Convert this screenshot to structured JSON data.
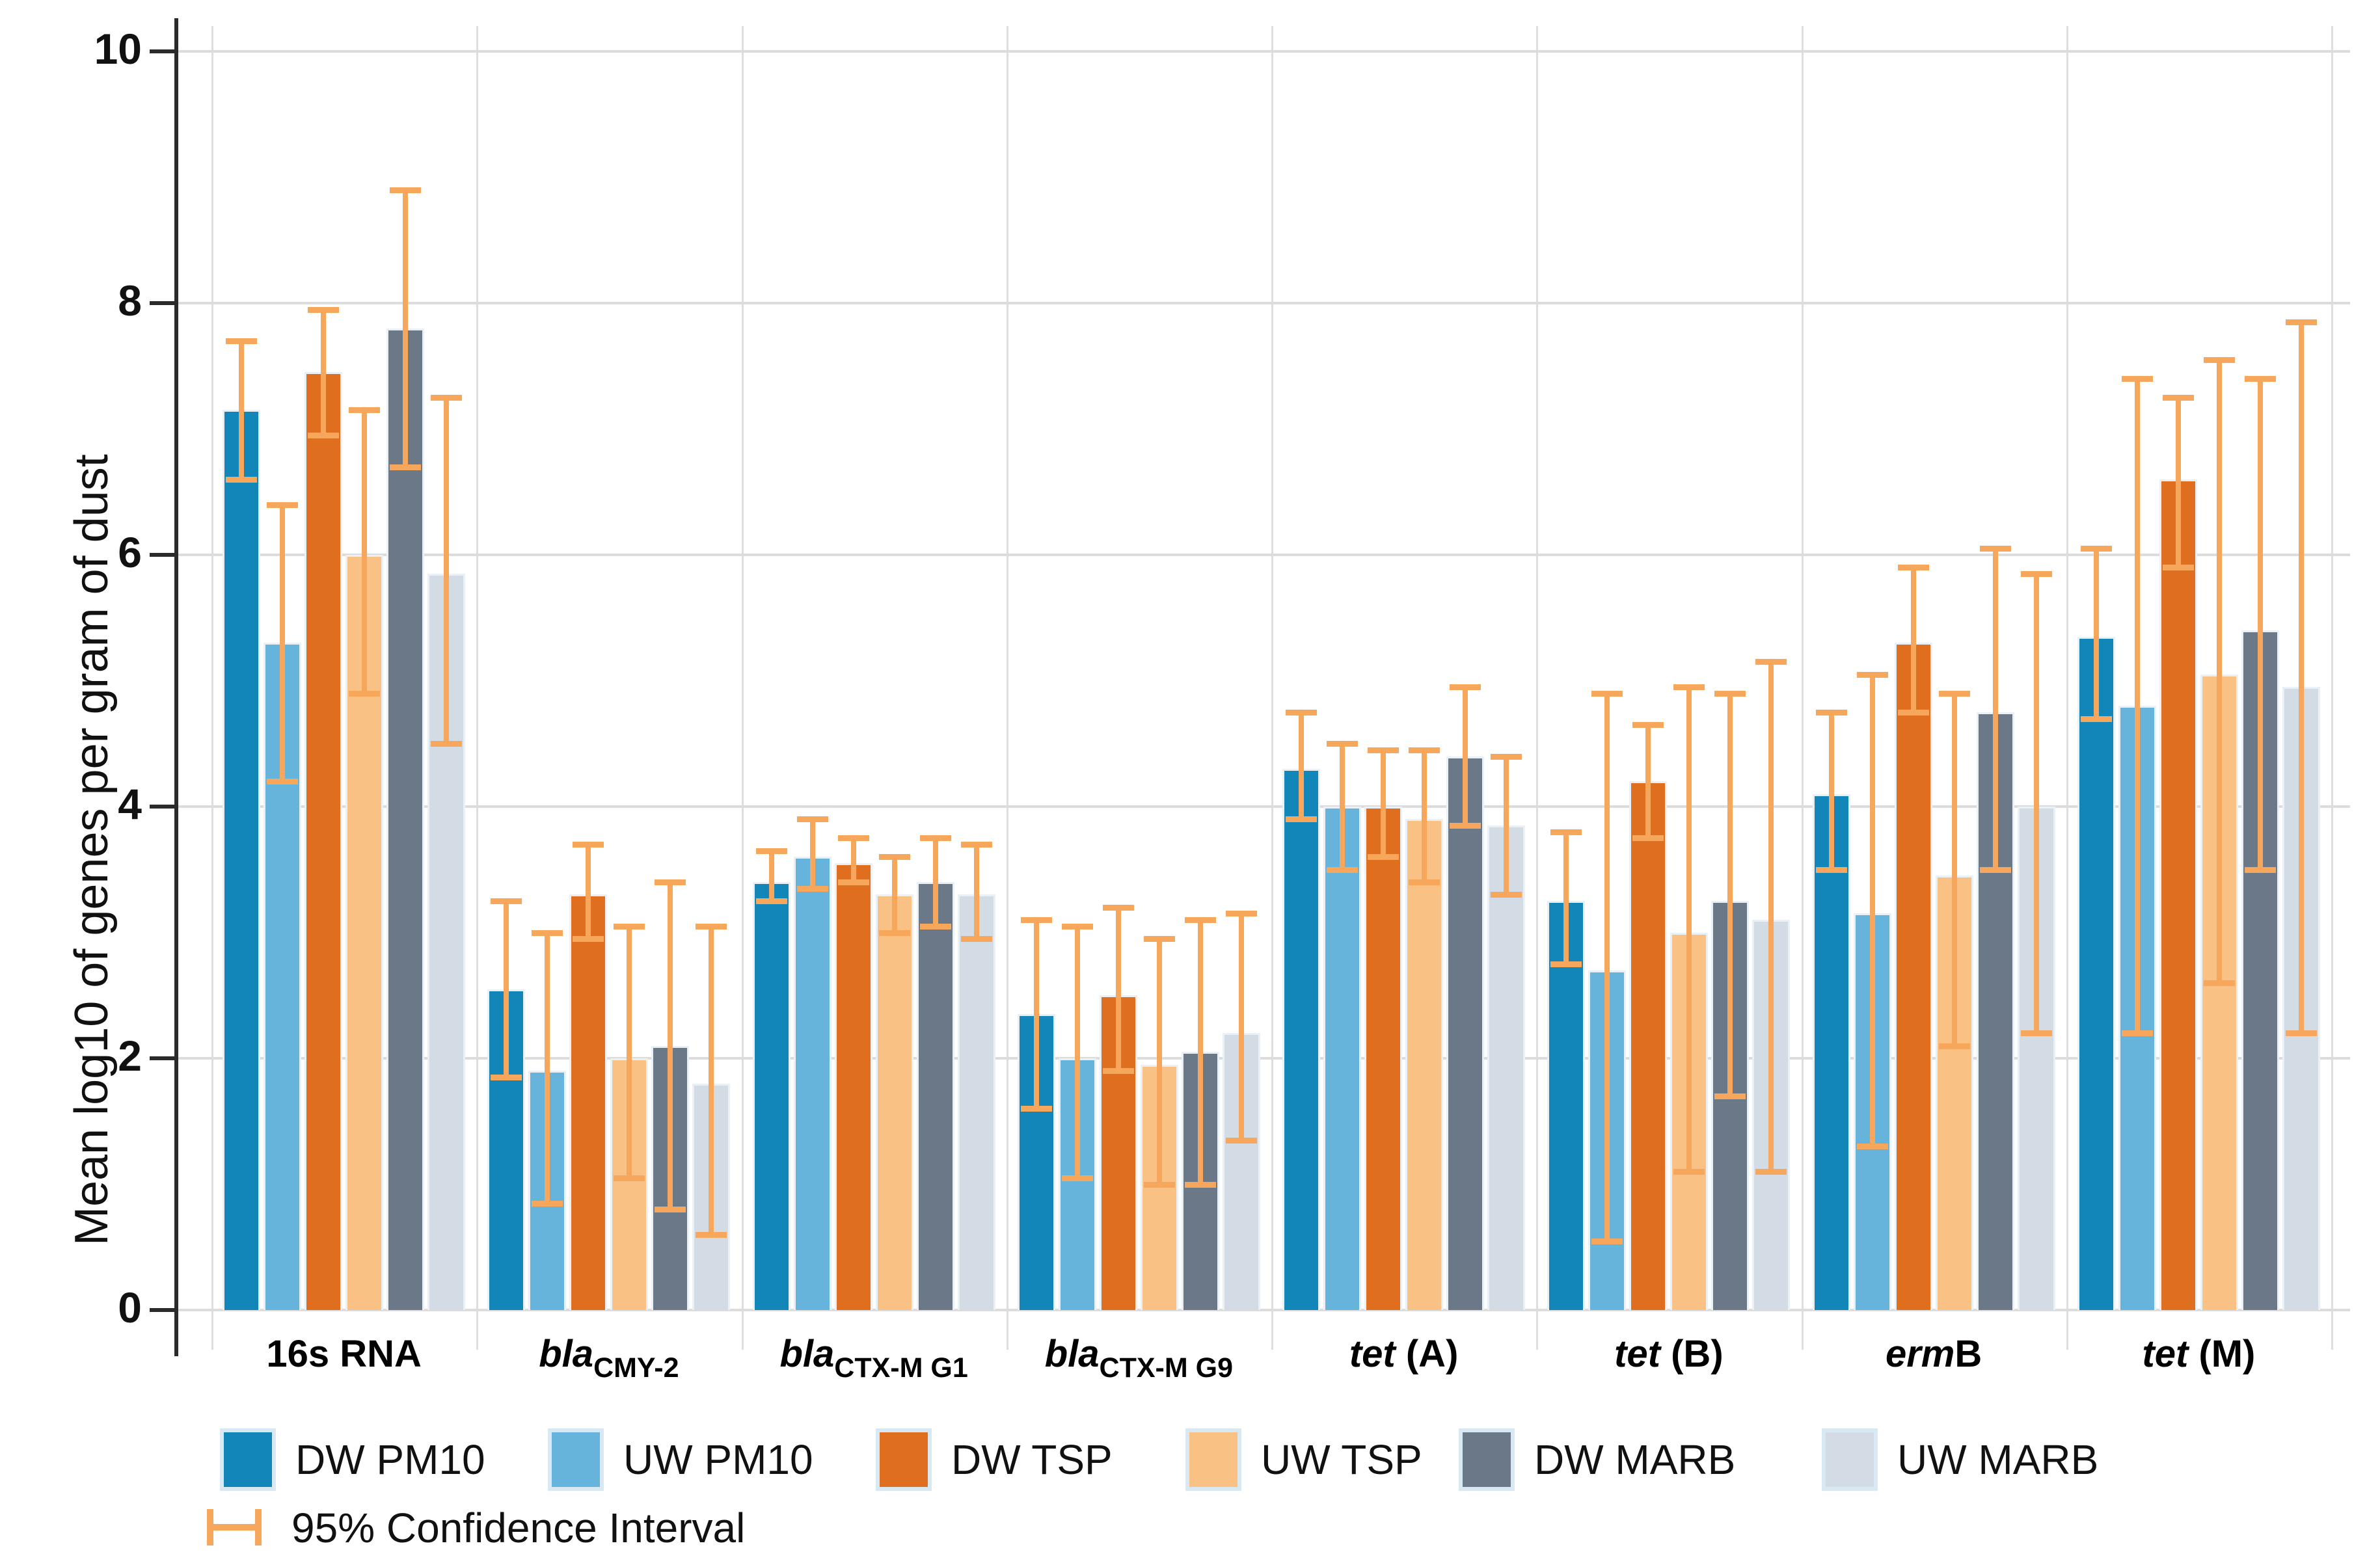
{
  "chart_data": {
    "type": "bar",
    "title": "",
    "ylabel": "Mean log10 of genes per gram of dust",
    "xlabel": "",
    "ylim": [
      0,
      10
    ],
    "yticks": [
      0,
      2,
      4,
      6,
      8,
      10
    ],
    "ytick_labels": [
      "0",
      "2",
      "4",
      "6",
      "8",
      "10"
    ],
    "grid": true,
    "legend_position": "bottom",
    "error_bar_label": "95% Confidence Interval",
    "error_bar_color": "#F7A75C",
    "categories": [
      {
        "display": "16s RNA",
        "parts": [
          {
            "text": "16s RNA"
          }
        ]
      },
      {
        "display": "blaCMY-2",
        "parts": [
          {
            "text": "bla",
            "italic": true
          },
          {
            "text": "CMY-2",
            "sub": true
          }
        ]
      },
      {
        "display": "blaCTX-M G1",
        "parts": [
          {
            "text": "bla",
            "italic": true
          },
          {
            "text": "CTX-M G1",
            "sub": true
          }
        ]
      },
      {
        "display": "blaCTX-M G9",
        "parts": [
          {
            "text": "bla",
            "italic": true
          },
          {
            "text": "CTX-M G9",
            "sub": true
          }
        ]
      },
      {
        "display": "tet (A)",
        "parts": [
          {
            "text": "tet",
            "italic": true
          },
          {
            "text": " (A)"
          }
        ]
      },
      {
        "display": "tet (B)",
        "parts": [
          {
            "text": "tet",
            "italic": true
          },
          {
            "text": " (B)"
          }
        ]
      },
      {
        "display": "ermB",
        "parts": [
          {
            "text": "erm",
            "italic": true
          },
          {
            "text": "B"
          }
        ]
      },
      {
        "display": "tet (M)",
        "parts": [
          {
            "text": "tet",
            "italic": true
          },
          {
            "text": " (M)"
          }
        ]
      }
    ],
    "series": [
      {
        "name": "DW PM10",
        "color": "#1286B8",
        "values": [
          7.15,
          2.55,
          3.4,
          2.35,
          4.3,
          3.25,
          4.1,
          5.35
        ],
        "ci_low": [
          6.6,
          1.85,
          3.25,
          1.6,
          3.9,
          2.75,
          3.5,
          4.7
        ],
        "ci_high": [
          7.7,
          3.25,
          3.65,
          3.1,
          4.75,
          3.8,
          4.75,
          6.05
        ]
      },
      {
        "name": "UW PM10",
        "color": "#66B3DB",
        "values": [
          5.3,
          1.9,
          3.6,
          2.0,
          4.0,
          2.7,
          3.15,
          4.8
        ],
        "ci_low": [
          4.2,
          0.85,
          3.35,
          1.05,
          3.5,
          0.55,
          1.3,
          2.2
        ],
        "ci_high": [
          6.4,
          3.0,
          3.9,
          3.05,
          4.5,
          4.9,
          5.05,
          7.4
        ]
      },
      {
        "name": "DW TSP",
        "color": "#E06E1F",
        "values": [
          7.45,
          3.3,
          3.55,
          2.5,
          4.0,
          4.2,
          5.3,
          6.6
        ],
        "ci_low": [
          6.95,
          2.95,
          3.4,
          1.9,
          3.6,
          3.75,
          4.75,
          5.9
        ],
        "ci_high": [
          7.95,
          3.7,
          3.75,
          3.2,
          4.45,
          4.65,
          5.9,
          7.25
        ]
      },
      {
        "name": "UW TSP",
        "color": "#FAC185",
        "values": [
          6.0,
          2.0,
          3.3,
          1.95,
          3.9,
          3.0,
          3.45,
          5.05
        ],
        "ci_low": [
          4.9,
          1.05,
          3.0,
          1.0,
          3.4,
          1.1,
          2.1,
          2.6
        ],
        "ci_high": [
          7.15,
          3.05,
          3.6,
          2.95,
          4.45,
          4.95,
          4.9,
          7.55
        ]
      },
      {
        "name": "DW MARB",
        "color": "#6B7888",
        "values": [
          7.8,
          2.1,
          3.4,
          2.05,
          4.4,
          3.25,
          4.75,
          5.4
        ],
        "ci_low": [
          6.7,
          0.8,
          3.05,
          1.0,
          3.85,
          1.7,
          3.5,
          3.5
        ],
        "ci_high": [
          8.9,
          3.4,
          3.75,
          3.1,
          4.95,
          4.9,
          6.05,
          7.4
        ]
      },
      {
        "name": "UW MARB",
        "color": "#D3DCE4",
        "values": [
          5.85,
          1.8,
          3.3,
          2.2,
          3.85,
          3.1,
          4.0,
          4.95
        ],
        "ci_low": [
          4.5,
          0.6,
          2.95,
          1.35,
          3.3,
          1.1,
          2.2,
          2.2
        ],
        "ci_high": [
          7.25,
          3.05,
          3.7,
          3.15,
          4.4,
          5.15,
          5.85,
          7.85
        ]
      }
    ],
    "legend_item_x": [
      338,
      842,
      1346,
      1822,
      2242,
      2800
    ]
  }
}
